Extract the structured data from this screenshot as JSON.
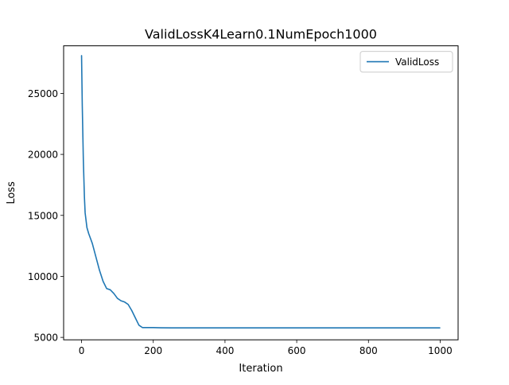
{
  "chart_data": {
    "type": "line",
    "title": "ValidLossK4Learn0.1NumEpoch1000",
    "xlabel": "Iteration",
    "ylabel": "Loss",
    "xlim": [
      -50,
      1050
    ],
    "ylim": [
      4800,
      28900
    ],
    "xticks": [
      0,
      200,
      400,
      600,
      800,
      1000
    ],
    "yticks": [
      5000,
      10000,
      15000,
      20000,
      25000
    ],
    "grid": false,
    "legend": {
      "placement": "top-right"
    },
    "series": [
      {
        "name": "ValidLoss",
        "color": "#1f77b4",
        "x": [
          0,
          2,
          5,
          8,
          10,
          15,
          20,
          25,
          30,
          40,
          50,
          60,
          70,
          80,
          90,
          100,
          110,
          120,
          130,
          140,
          150,
          160,
          170,
          180,
          190,
          200,
          220,
          250,
          300,
          400,
          500,
          600,
          700,
          800,
          900,
          999
        ],
        "y": [
          28100,
          24000,
          19500,
          16500,
          15200,
          14000,
          13500,
          13100,
          12700,
          11600,
          10500,
          9600,
          9000,
          8900,
          8600,
          8200,
          8000,
          7900,
          7700,
          7200,
          6600,
          6000,
          5800,
          5800,
          5800,
          5800,
          5790,
          5780,
          5780,
          5780,
          5780,
          5780,
          5780,
          5780,
          5780,
          5780
        ]
      }
    ]
  }
}
